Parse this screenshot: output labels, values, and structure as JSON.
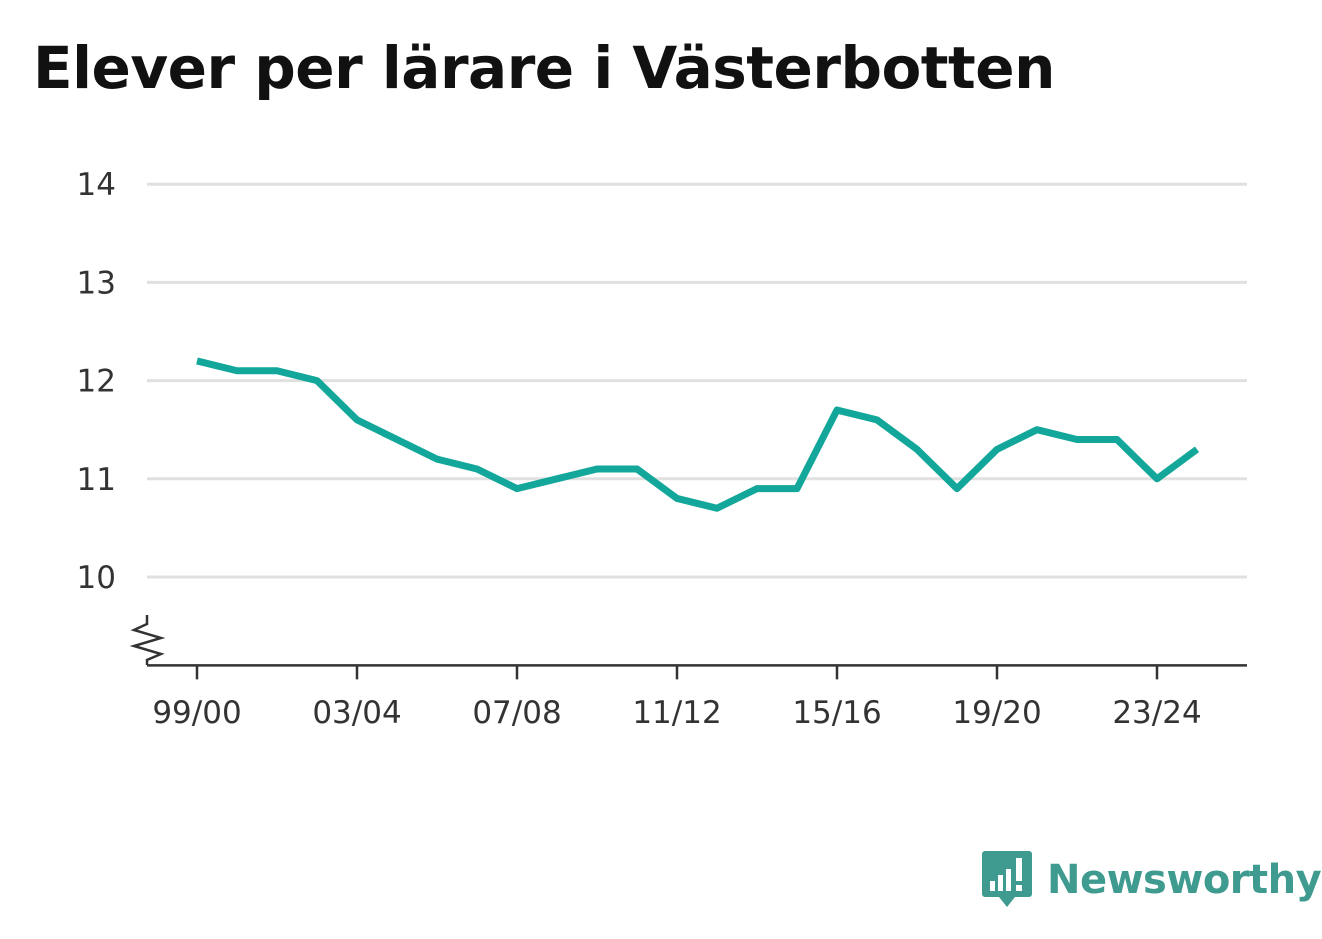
{
  "title": "Elever per lärare i Västerbotten",
  "brand": {
    "name": "Newsworthy"
  },
  "colors": {
    "line": "#12a79a",
    "grid": "#e0e0e0",
    "axis": "#333333",
    "brand": "#3f9a8f"
  },
  "chart_data": {
    "type": "line",
    "title": "Elever per lärare i Västerbotten",
    "xlabel": "",
    "ylabel": "",
    "x": [
      "99/00",
      "00/01",
      "01/02",
      "02/03",
      "03/04",
      "04/05",
      "05/06",
      "06/07",
      "07/08",
      "08/09",
      "09/10",
      "10/11",
      "11/12",
      "12/13",
      "13/14",
      "14/15",
      "15/16",
      "16/17",
      "17/18",
      "18/19",
      "19/20",
      "20/21",
      "21/22",
      "22/23",
      "23/24",
      "24/25"
    ],
    "x_tick_labels": [
      "99/00",
      "03/04",
      "07/08",
      "11/12",
      "15/16",
      "19/20",
      "23/24"
    ],
    "series": [
      {
        "values": [
          12.2,
          12.1,
          12.1,
          12.0,
          11.6,
          11.4,
          11.2,
          11.1,
          10.9,
          11.0,
          11.1,
          11.1,
          10.8,
          10.7,
          10.9,
          10.9,
          11.7,
          11.6,
          11.3,
          10.9,
          11.3,
          11.5,
          11.4,
          11.4,
          11.0,
          11.3
        ]
      }
    ],
    "y_ticks": [
      10,
      11,
      12,
      13,
      14
    ],
    "ylim": [
      9.1,
      14
    ],
    "y_axis_break": true,
    "grid": true,
    "legend": "none"
  }
}
